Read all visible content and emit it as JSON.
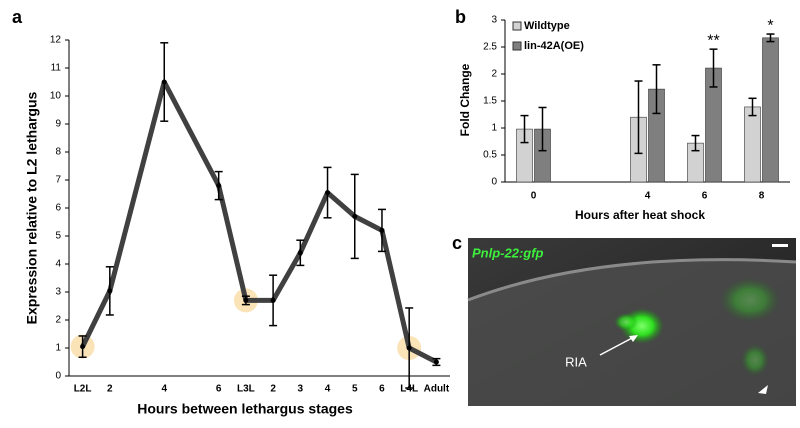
{
  "chart_data": [
    {
      "type": "line",
      "panel_label": "a",
      "y_label": "Expression relative to L2 lethargus",
      "x_label": "Hours between lethargus stages",
      "categories": [
        "L2L",
        "2",
        null,
        "4",
        null,
        "6",
        "L3L",
        "2",
        "3",
        "4",
        "5",
        "6",
        "L4L",
        "Adult"
      ],
      "series": [
        {
          "color": "#404040",
          "values": [
            1.05,
            3.04,
            null,
            10.5,
            null,
            6.8,
            2.7,
            2.7,
            4.4,
            6.55,
            5.7,
            5.2,
            1.0,
            0.5
          ],
          "errors": [
            0.38,
            0.86,
            null,
            1.4,
            null,
            0.5,
            0.15,
            0.9,
            0.45,
            0.9,
            1.5,
            0.75,
            1.43,
            0.12
          ]
        }
      ],
      "ylim": [
        0,
        12
      ],
      "yticks": [
        0,
        1,
        2,
        3,
        4,
        5,
        6,
        7,
        8,
        9,
        10,
        11,
        12
      ]
    },
    {
      "type": "bar",
      "panel_label": "b",
      "y_label": "Fold Change",
      "x_label": "Hours after heat shock",
      "categories": [
        "0",
        null,
        "4",
        "6",
        "8"
      ],
      "series": [
        {
          "name": "Wildtype",
          "color": "#d2d2d2",
          "values": [
            0.98,
            null,
            1.2,
            0.72,
            1.39
          ],
          "errors": [
            0.25,
            null,
            0.67,
            0.14,
            0.16
          ]
        },
        {
          "name": "lin-42A(OE)",
          "color": "#7f7f7f",
          "values": [
            0.98,
            null,
            1.72,
            2.11,
            2.67
          ],
          "errors": [
            0.4,
            null,
            0.45,
            0.35,
            0.07
          ],
          "significance": [
            null,
            null,
            null,
            "**",
            "*"
          ]
        }
      ],
      "ylim": [
        0,
        3
      ],
      "yticks": [
        0,
        0.5,
        1,
        1.5,
        2,
        2.5,
        3
      ]
    }
  ],
  "image_panel": {
    "panel_label": "c",
    "title": "Pnlp-22:gfp",
    "label": "RIA"
  }
}
